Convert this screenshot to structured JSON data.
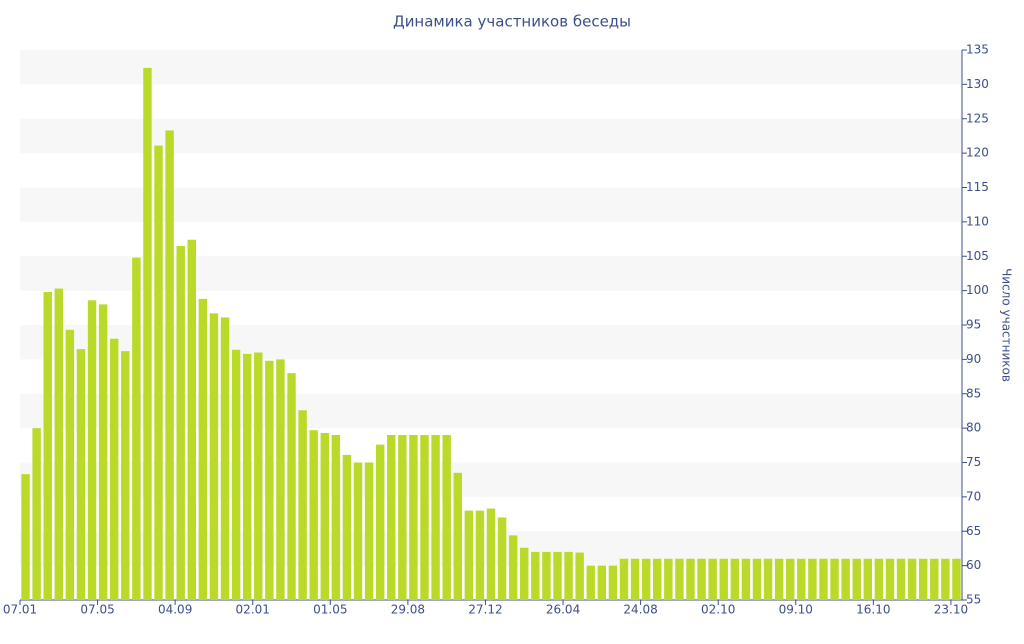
{
  "chart_data": {
    "type": "bar",
    "title": "Динамика участников беседы",
    "y_label": "Число участников",
    "categories": [
      "07.01",
      null,
      null,
      null,
      null,
      null,
      null,
      "07.05",
      null,
      null,
      null,
      null,
      null,
      null,
      "04.09",
      null,
      null,
      null,
      null,
      null,
      null,
      "02.01",
      null,
      null,
      null,
      null,
      null,
      null,
      "01.05",
      null,
      null,
      null,
      null,
      null,
      null,
      "29.08",
      null,
      null,
      null,
      null,
      null,
      null,
      "27.12",
      null,
      null,
      null,
      null,
      null,
      null,
      "26.04",
      null,
      null,
      null,
      null,
      null,
      null,
      "24.08",
      null,
      null,
      null,
      null,
      null,
      null,
      "02.10",
      null,
      null,
      null,
      null,
      null,
      null,
      "09.10",
      null,
      null,
      null,
      null,
      null,
      null,
      "16.10",
      null,
      null,
      null,
      null,
      null,
      null,
      "23.10"
    ],
    "values": [
      73.3,
      80,
      99.8,
      100.3,
      94.3,
      91.5,
      98.6,
      98,
      93,
      91.2,
      104.8,
      132.4,
      121.1,
      123.3,
      106.5,
      107.4,
      98.8,
      96.7,
      96.1,
      91.4,
      90.8,
      91,
      89.8,
      90,
      88,
      82.6,
      79.7,
      79.3,
      79,
      76.1,
      75,
      75,
      77.6,
      79,
      79,
      79,
      79,
      79,
      79,
      73.5,
      68,
      68,
      68.3,
      67,
      64.4,
      62.6,
      62,
      62,
      62,
      62,
      61.9,
      60,
      60,
      60,
      61,
      61,
      61,
      61,
      61,
      61,
      61,
      61,
      61,
      61,
      61,
      61,
      61,
      61,
      61,
      61,
      61,
      61,
      61,
      61,
      61,
      61,
      61,
      61,
      61,
      61,
      61,
      61,
      61,
      61,
      61
    ],
    "color": "#bada2a",
    "ylim": [
      55,
      135
    ],
    "yticks": [
      55,
      60,
      65,
      70,
      75,
      80,
      85,
      90,
      95,
      100,
      105,
      110,
      115,
      120,
      125,
      130,
      135
    ],
    "y_axis_side": "right",
    "grid": "bands"
  }
}
